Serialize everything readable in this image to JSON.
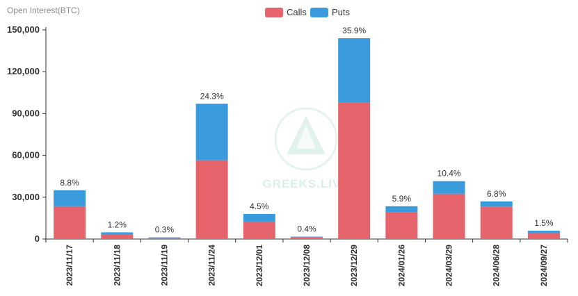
{
  "chart_data": {
    "type": "bar",
    "stacked": true,
    "ytitle": "Open Interest(BTC)",
    "categories": [
      "2023/11/17",
      "2023/11/18",
      "2023/11/19",
      "2023/11/24",
      "2023/12/01",
      "2023/12/08",
      "2023/12/29",
      "2024/01/26",
      "2024/03/29",
      "2024/06/28",
      "2024/09/27"
    ],
    "series": [
      {
        "name": "Calls",
        "color": "#e5636a",
        "values": [
          23500,
          3200,
          700,
          56500,
          12500,
          1100,
          98000,
          19000,
          32500,
          23000,
          4500
        ]
      },
      {
        "name": "Puts",
        "color": "#3a9bdc",
        "values": [
          11500,
          1600,
          500,
          40500,
          5500,
          600,
          46000,
          4500,
          9000,
          4000,
          1500
        ]
      }
    ],
    "data_labels": [
      "8.8%",
      "1.2%",
      "0.3%",
      "24.3%",
      "4.5%",
      "0.4%",
      "35.9%",
      "5.9%",
      "10.4%",
      "6.8%",
      "1.5%"
    ],
    "yticks": [
      "0",
      "30,000",
      "60,000",
      "90,000",
      "120,000",
      "150,000"
    ],
    "ylim": [
      0,
      150000
    ],
    "legend_position": "top-center"
  },
  "watermark": {
    "text": "GREEKS.LIVE",
    "color": "#d9efe9"
  }
}
